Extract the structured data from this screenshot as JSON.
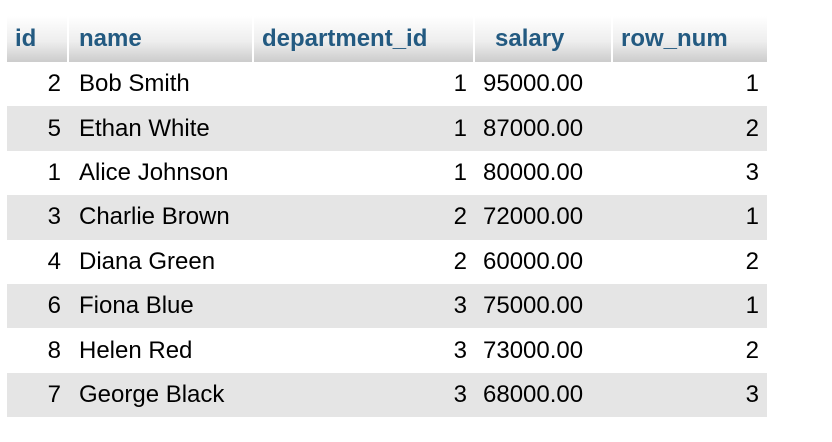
{
  "table": {
    "columns": [
      "id",
      "name",
      "department_id",
      "salary",
      "row_num"
    ],
    "rows": [
      {
        "id": "2",
        "name": "Bob Smith",
        "department_id": "1",
        "salary": "95000.00",
        "row_num": "1"
      },
      {
        "id": "5",
        "name": "Ethan White",
        "department_id": "1",
        "salary": "87000.00",
        "row_num": "2"
      },
      {
        "id": "1",
        "name": "Alice Johnson",
        "department_id": "1",
        "salary": "80000.00",
        "row_num": "3"
      },
      {
        "id": "3",
        "name": "Charlie Brown",
        "department_id": "2",
        "salary": "72000.00",
        "row_num": "1"
      },
      {
        "id": "4",
        "name": "Diana Green",
        "department_id": "2",
        "salary": "60000.00",
        "row_num": "2"
      },
      {
        "id": "6",
        "name": "Fiona Blue",
        "department_id": "3",
        "salary": "75000.00",
        "row_num": "1"
      },
      {
        "id": "8",
        "name": "Helen Red",
        "department_id": "3",
        "salary": "73000.00",
        "row_num": "2"
      },
      {
        "id": "7",
        "name": "George Black",
        "department_id": "3",
        "salary": "68000.00",
        "row_num": "3"
      }
    ]
  },
  "colors": {
    "header_text": "#235a81",
    "row_alt_background": "#e5e5e5"
  }
}
